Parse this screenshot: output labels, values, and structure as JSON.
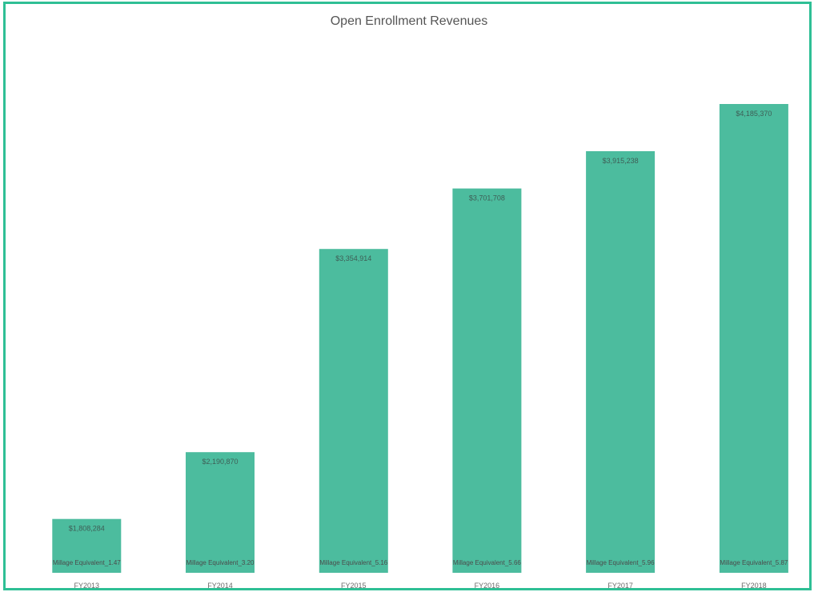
{
  "chart_data": {
    "type": "bar",
    "title": "Open Enrollment Revenues",
    "xlabel": "",
    "ylabel": "",
    "categories": [
      "FY2013",
      "FY2014",
      "FY2015",
      "FY2016",
      "FY2017",
      "FY2018"
    ],
    "values": [
      1808284,
      2190870,
      3354914,
      3701708,
      3915238,
      4185370
    ],
    "data_labels": [
      "$1,808,284",
      "$2,190,870",
      "$3,354,914",
      "$3,701,708",
      "$3,915,238",
      "$4,185,370"
    ],
    "millage_labels": [
      "Millage Equivalent_1.47",
      "Millage Equivalent_3.20",
      "Millage Equivalent_5.16",
      "Millage Equivalent_5.66",
      "Millage Equivalent_5.96",
      "Millage Equivalent_5.87"
    ],
    "ylim": [
      1500000,
      4300000
    ],
    "grid": false,
    "bar_color": "#4cbc9e",
    "frame_color": "#2fbf95"
  }
}
